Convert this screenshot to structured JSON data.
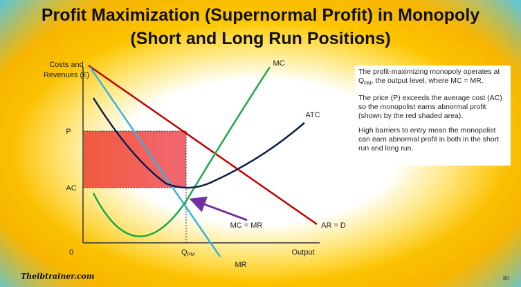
{
  "title": {
    "line1": "Profit Maximization (Supernormal Profit) in Monopoly",
    "line2": "(Short and Long Run Positions)"
  },
  "diagram": {
    "y_axis_label_line1": "Costs and",
    "y_axis_label_line2": "Revenues (€)",
    "x_axis_label": "Output",
    "origin": "0",
    "price_label": "P",
    "ac_label": "AC",
    "q_label_main": "Q",
    "q_label_sub": "PM",
    "curves": {
      "mc": "MC",
      "atc": "ATC",
      "ar": "AR = D",
      "mr": "MR"
    },
    "annotation": "MC = MR",
    "colors": {
      "ar_line": "#c00000",
      "mr_line": "#33b5e5",
      "mc_line": "#1aa84a",
      "atc_line": "#0b1d4a",
      "profit_area": "#ef4c4c",
      "arrow": "#7030a0"
    }
  },
  "notes": {
    "p1_before": "The profit-maximizing monopoly operates at Q",
    "p1_sub": "PM",
    "p1_after": ", the output level, where MC = MR.",
    "p2": "The price (P) exceeds the average cost (AC) so the monopolist earns abnormal profit (shown by the red shaded area).",
    "p3": "High barriers to entry mean the monopolist can earn abnormal profit in both in the short run and long run."
  },
  "footer": {
    "brand": "Theibtrainer.com",
    "page_number": "80"
  }
}
